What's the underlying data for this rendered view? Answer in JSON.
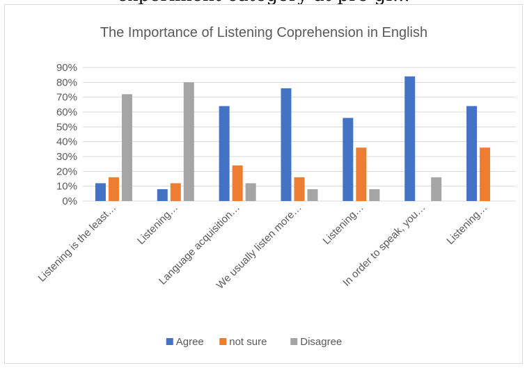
{
  "caption_partial": "experiment category at pre-gr...",
  "chart_data": {
    "type": "bar",
    "title": "The Importance of Listening Coprehension in English",
    "categories": [
      "Listening is the least…",
      "Listening…",
      "Language acquisition…",
      "We usually listen more…",
      "Listening…",
      "In order to speak, you…",
      "Listening…"
    ],
    "series": [
      {
        "name": "Agree",
        "color": "#4472c4",
        "values": [
          12,
          8,
          64,
          76,
          56,
          84,
          64
        ]
      },
      {
        "name": "not sure",
        "color": "#ed7d31",
        "values": [
          16,
          12,
          24,
          16,
          36,
          0,
          36
        ]
      },
      {
        "name": "Disagree",
        "color": "#a5a5a5",
        "values": [
          72,
          80,
          12,
          8,
          8,
          16,
          0
        ]
      }
    ],
    "y_ticks": [
      "0%",
      "10%",
      "20%",
      "30%",
      "40%",
      "50%",
      "60%",
      "70%",
      "80%",
      "90%"
    ],
    "ylim": [
      0,
      90
    ],
    "grid": true,
    "legend_position": "bottom"
  }
}
